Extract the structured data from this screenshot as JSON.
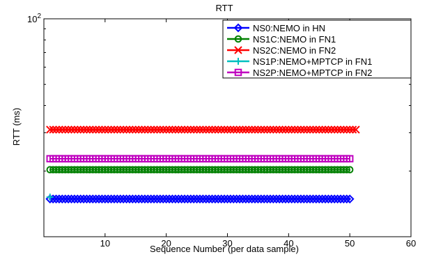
{
  "chart_data": {
    "type": "line",
    "title": "RTT",
    "xlabel": "Sequence Number (per data sample)",
    "ylabel": "RTT (ms)",
    "xlim": [
      0,
      60
    ],
    "ylim": [
      10,
      100
    ],
    "y_scale": "log",
    "x_ticks": [
      10,
      20,
      30,
      40,
      50,
      60
    ],
    "y_tick_label": {
      "base": "10",
      "exponent": "2",
      "value": 100
    },
    "grid": false,
    "legend_position": "top-right",
    "series": [
      {
        "name": "NS0:NEMO in HN",
        "color": "#0000ff",
        "marker": "diamond",
        "x_start": 1,
        "x_end": 50,
        "y": 14.9
      },
      {
        "name": "NS1C:NEMO in FN1",
        "color": "#008000",
        "marker": "circle",
        "x_start": 1,
        "x_end": 50,
        "y": 20.3
      },
      {
        "name": "NS2C:NEMO in FN2",
        "color": "#ff0000",
        "marker": "x",
        "x_start": 1,
        "x_end": 51,
        "y": 31.0
      },
      {
        "name": "NS1P:NEMO+MPTCP in FN1",
        "color": "#00bfbf",
        "marker": "plus",
        "x_start": 1,
        "x_end": 1,
        "y": 15.2
      },
      {
        "name": "NS2P:NEMO+MPTCP in FN2",
        "color": "#bf00bf",
        "marker": "square",
        "x_start": 1,
        "x_end": 50,
        "y": 22.8
      }
    ]
  }
}
